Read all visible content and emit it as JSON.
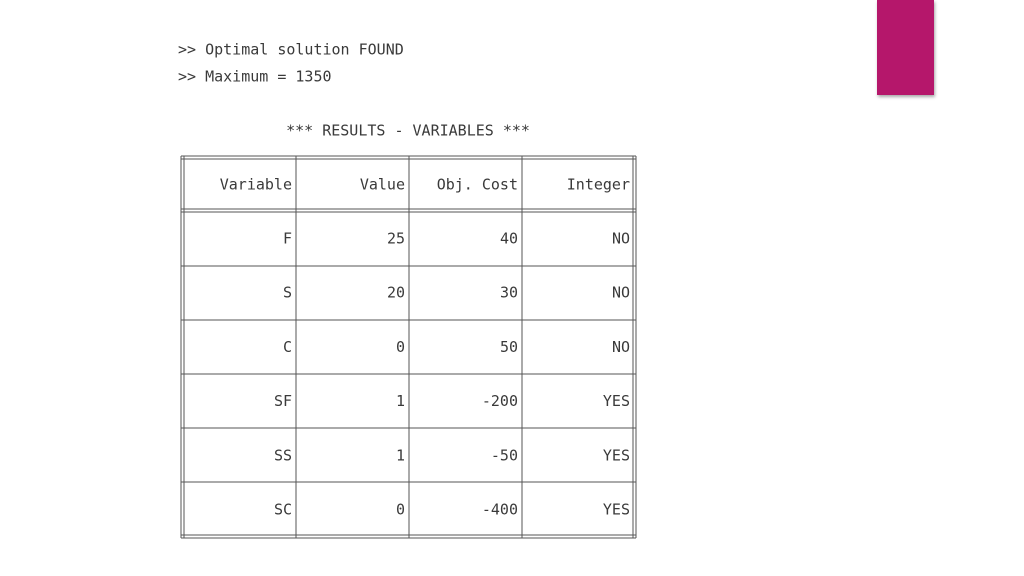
{
  "console": {
    "lines": [
      ">> Optimal solution FOUND",
      ">> Maximum = 1350"
    ],
    "heading": "*** RESULTS - VARIABLES ***",
    "table": {
      "columns": [
        "Variable",
        "Value",
        "Obj. Cost",
        "Integer"
      ],
      "rows": [
        [
          "F",
          25,
          40,
          "NO"
        ],
        [
          "S",
          20,
          30,
          "NO"
        ],
        [
          "C",
          0,
          50,
          "NO"
        ],
        [
          "SF",
          1,
          -200,
          "YES"
        ],
        [
          "SS",
          1,
          -50,
          "YES"
        ],
        [
          "SC",
          0,
          -400,
          "YES"
        ]
      ]
    }
  }
}
